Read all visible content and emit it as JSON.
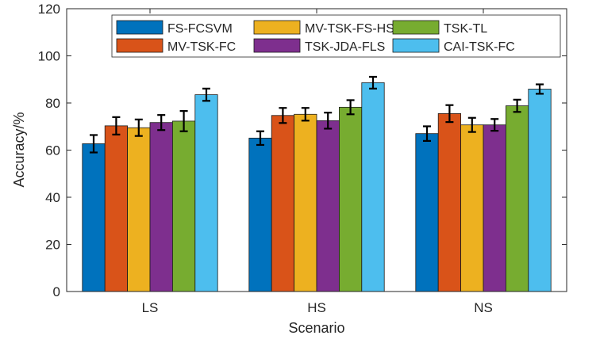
{
  "chart_data": {
    "type": "bar",
    "title": "",
    "xlabel": "Scenario",
    "ylabel": "Accuracy/%",
    "ylim": [
      0,
      120
    ],
    "yticks": [
      0,
      20,
      40,
      60,
      80,
      100,
      120
    ],
    "grid": false,
    "legend_position": "top",
    "categories": [
      "LS",
      "HS",
      "NS"
    ],
    "series": [
      {
        "name": "FS-FCSVM",
        "color": "#0072BD",
        "values": [
          62.7,
          65.1,
          67.0
        ],
        "errors": [
          3.7,
          2.9,
          3.1
        ]
      },
      {
        "name": "MV-TSK-FC",
        "color": "#D95319",
        "values": [
          70.3,
          74.7,
          75.5
        ],
        "errors": [
          3.7,
          3.2,
          3.6
        ]
      },
      {
        "name": "MV-TSK-FS-HSIC",
        "color": "#EDB120",
        "values": [
          69.5,
          75.2,
          70.7
        ],
        "errors": [
          3.5,
          2.7,
          3.0
        ]
      },
      {
        "name": "TSK-JDA-FLS",
        "color": "#7E2F8E",
        "values": [
          71.7,
          72.5,
          70.7
        ],
        "errors": [
          3.2,
          3.4,
          2.5
        ]
      },
      {
        "name": "TSK-TL",
        "color": "#77AC30",
        "values": [
          72.3,
          78.2,
          78.8
        ],
        "errors": [
          4.3,
          3.0,
          2.6
        ]
      },
      {
        "name": "CAI-TSK-FC",
        "color": "#4DBEEE",
        "values": [
          83.5,
          88.6,
          85.9
        ],
        "errors": [
          2.6,
          2.5,
          2.0
        ]
      }
    ]
  }
}
